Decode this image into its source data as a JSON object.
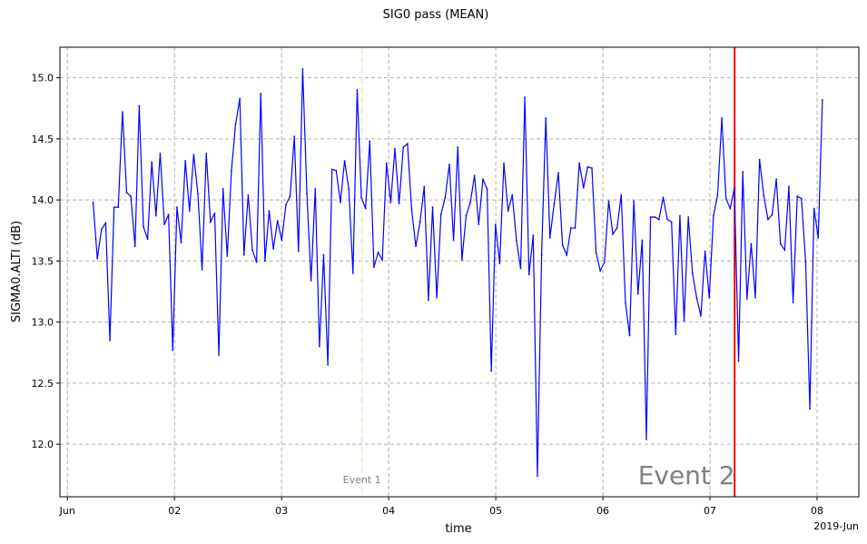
{
  "chart_data": {
    "type": "line",
    "title": "SIG0 pass (MEAN)",
    "xlabel": "time",
    "ylabel": "SIGMA0.ALTI (dB)",
    "x_tick_labels": [
      "Jun",
      "02",
      "03",
      "04",
      "05",
      "06",
      "07",
      "08"
    ],
    "x_axis_offset_label": "2019-Jun",
    "x_tick_values": [
      0,
      1,
      2,
      3,
      4,
      5,
      6,
      7
    ],
    "xlim": [
      -0.07,
      7.39
    ],
    "ylim": [
      11.57,
      15.25
    ],
    "y_ticks": [
      12.0,
      12.5,
      13.0,
      13.5,
      14.0,
      14.5,
      15.0
    ],
    "y_tick_labels": [
      "12.0",
      "12.5",
      "13.0",
      "13.5",
      "14.0",
      "14.5",
      "15.0"
    ],
    "grid": true,
    "grid_style": "dashed",
    "series": [
      {
        "color": "#0000ff",
        "values": [
          13.98,
          13.52,
          13.76,
          13.81,
          12.85,
          13.94,
          13.94,
          14.72,
          14.06,
          14.03,
          13.62,
          14.77,
          13.78,
          13.68,
          14.31,
          13.87,
          14.38,
          13.8,
          13.88,
          12.77,
          13.94,
          13.65,
          14.32,
          13.91,
          14.37,
          14.05,
          13.43,
          14.38,
          13.82,
          13.89,
          12.73,
          14.09,
          13.54,
          14.24,
          14.62,
          14.83,
          13.55,
          14.04,
          13.59,
          13.49,
          14.87,
          13.5,
          13.91,
          13.6,
          13.83,
          13.67,
          13.96,
          14.03,
          14.52,
          13.58,
          15.07,
          14.05,
          13.34,
          14.09,
          12.8,
          13.55,
          12.65,
          14.25,
          14.24,
          13.98,
          14.32,
          14.09,
          13.4,
          14.9,
          14.02,
          13.93,
          14.48,
          13.45,
          13.57,
          13.51,
          14.3,
          13.98,
          14.42,
          13.97,
          14.43,
          14.46,
          13.92,
          13.62,
          13.82,
          14.11,
          13.18,
          13.94,
          13.2,
          13.88,
          14.02,
          14.29,
          13.67,
          14.43,
          13.51,
          13.87,
          13.98,
          14.2,
          13.8,
          14.17,
          14.09,
          12.6,
          13.8,
          13.48,
          14.3,
          13.91,
          14.04,
          13.67,
          13.44,
          14.84,
          13.39,
          13.71,
          11.74,
          13.55,
          14.67,
          13.69,
          13.97,
          14.22,
          13.63,
          13.55,
          13.77,
          13.77,
          14.3,
          14.1,
          14.27,
          14.26,
          13.57,
          13.42,
          13.49,
          13.99,
          13.72,
          13.77,
          14.04,
          13.16,
          12.89,
          13.99,
          13.23,
          13.67,
          12.04,
          13.86,
          13.86,
          13.84,
          14.02,
          13.84,
          13.82,
          12.9,
          13.87,
          13.01,
          13.86,
          13.4,
          13.2,
          13.05,
          13.58,
          13.2,
          13.87,
          14.04,
          14.67,
          14.01,
          13.93,
          14.1,
          12.68,
          14.23,
          13.19,
          13.64,
          13.2,
          14.33,
          14.04,
          13.84,
          13.88,
          14.17,
          13.64,
          13.59,
          14.11,
          13.16,
          14.03,
          14.01,
          13.49,
          12.29,
          13.93,
          13.69,
          14.82
        ]
      }
    ],
    "x_start": 0.24,
    "x_end": 7.05,
    "vertical_markers": [
      {
        "name": "Event 1",
        "x": 2.75,
        "color": "#eeeecc",
        "style": "dashed",
        "label": "Event 1",
        "label_color": "#808080"
      },
      {
        "name": "Event 2",
        "x": 6.23,
        "color": "#ff0000",
        "style": "solid",
        "label": "Event 2",
        "label_color": "#808080"
      }
    ]
  }
}
